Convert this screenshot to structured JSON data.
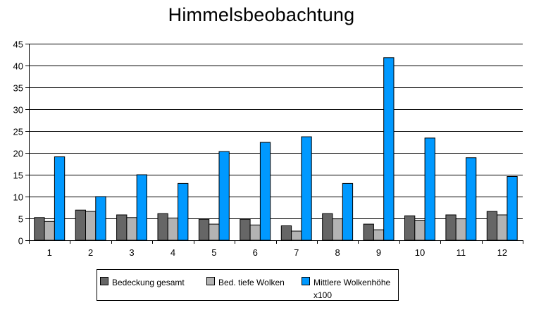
{
  "chart_data": {
    "type": "bar",
    "title": "Himmelsbeobachtung",
    "xlabel": "",
    "ylabel": "",
    "categories": [
      "1",
      "2",
      "3",
      "4",
      "5",
      "6",
      "7",
      "8",
      "9",
      "10",
      "11",
      "12"
    ],
    "series": [
      {
        "name": "Bedeckung gesamt",
        "color": "#666666",
        "values": [
          5.2,
          6.9,
          5.8,
          6.1,
          4.8,
          4.8,
          3.3,
          6.1,
          3.7,
          5.6,
          5.8,
          6.6
        ]
      },
      {
        "name": "Bed. tiefe Wolken",
        "color": "#b3b3b3",
        "values": [
          4.3,
          6.6,
          5.2,
          5.1,
          3.7,
          3.5,
          2.1,
          4.9,
          2.4,
          4.6,
          4.9,
          5.8
        ]
      },
      {
        "name": "Mittlere Wolkenhöhe x100",
        "color": "#0099ff",
        "values": [
          19.1,
          10.0,
          15.0,
          13.0,
          20.3,
          22.4,
          23.7,
          13.0,
          41.8,
          23.4,
          18.9,
          14.6
        ]
      }
    ],
    "ylim": [
      0,
      45
    ],
    "yticks": [
      0,
      5,
      10,
      15,
      20,
      25,
      30,
      35,
      40,
      45
    ],
    "grid": true,
    "legend_position": "bottom"
  },
  "legend": {
    "items": [
      {
        "label": "Bedeckung gesamt",
        "color": "#666666"
      },
      {
        "label": "Bed. tiefe Wolken",
        "color": "#b3b3b3"
      },
      {
        "label": "Mittlere Wolkenhöhe\nx100",
        "color": "#0099ff"
      }
    ]
  }
}
